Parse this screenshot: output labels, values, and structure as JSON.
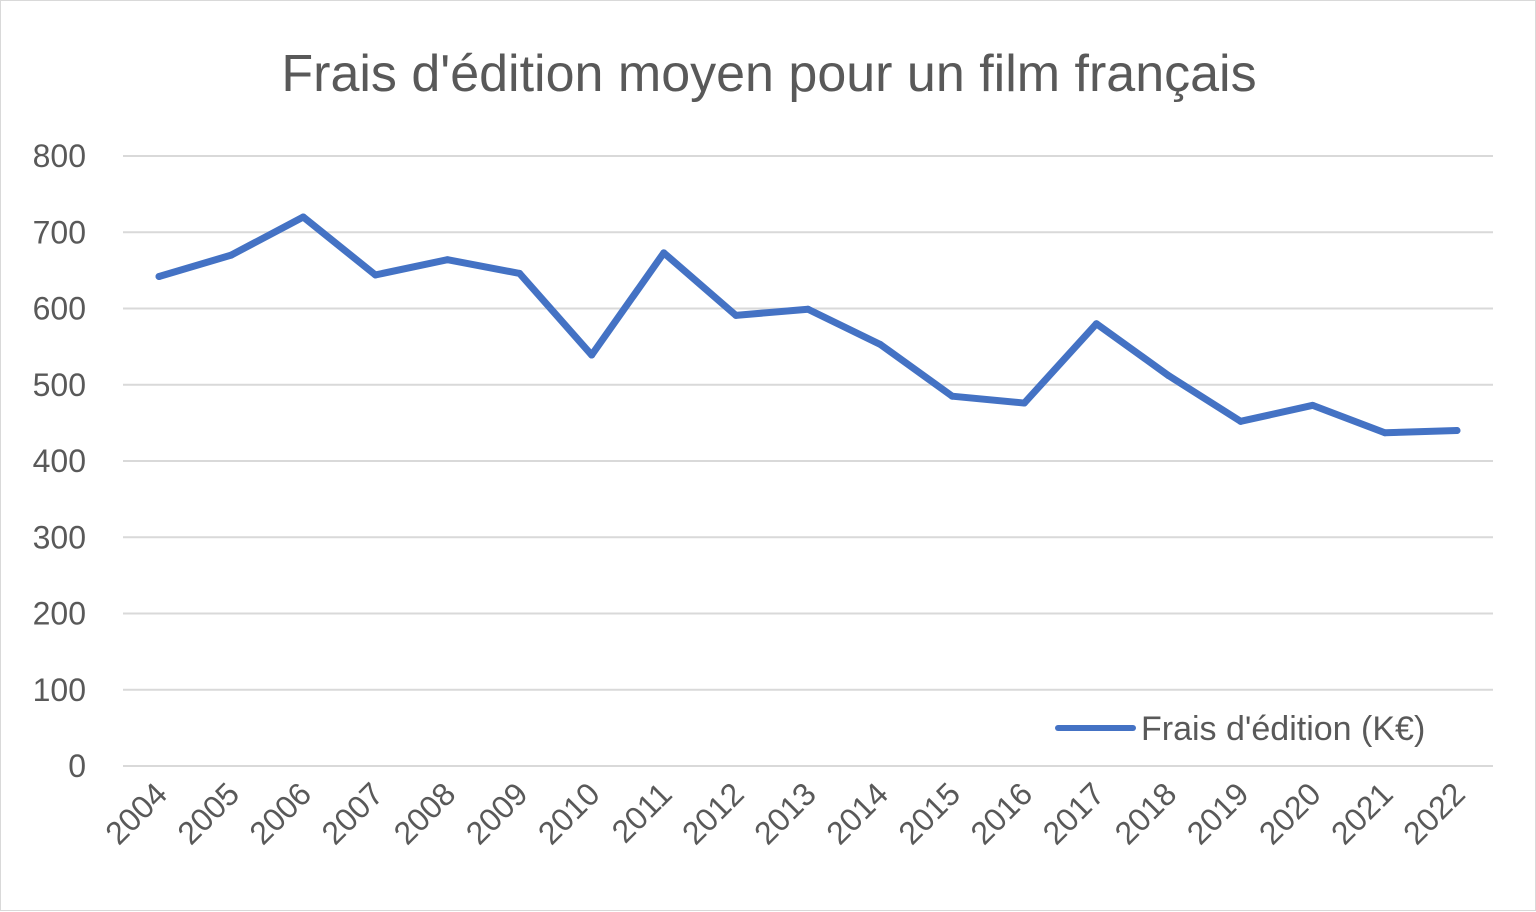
{
  "chart_data": {
    "type": "line",
    "title": "Frais d'édition moyen pour un film français",
    "xlabel": "",
    "ylabel": "",
    "categories": [
      "2004",
      "2005",
      "2006",
      "2007",
      "2008",
      "2009",
      "2010",
      "2011",
      "2012",
      "2013",
      "2014",
      "2015",
      "2016",
      "2017",
      "2018",
      "2019",
      "2020",
      "2021",
      "2022"
    ],
    "series": [
      {
        "name": "Frais d'édition (K€)",
        "values": [
          642,
          670,
          720,
          644,
          664,
          646,
          539,
          673,
          591,
          599,
          553,
          485,
          476,
          580,
          512,
          452,
          473,
          437,
          440
        ],
        "color": "#4472c4"
      }
    ],
    "ylim": [
      0,
      800
    ],
    "yticks": [
      "0",
      "100",
      "200",
      "300",
      "400",
      "500",
      "600",
      "700",
      "800"
    ],
    "grid": true,
    "legend_position": "bottom-right"
  }
}
